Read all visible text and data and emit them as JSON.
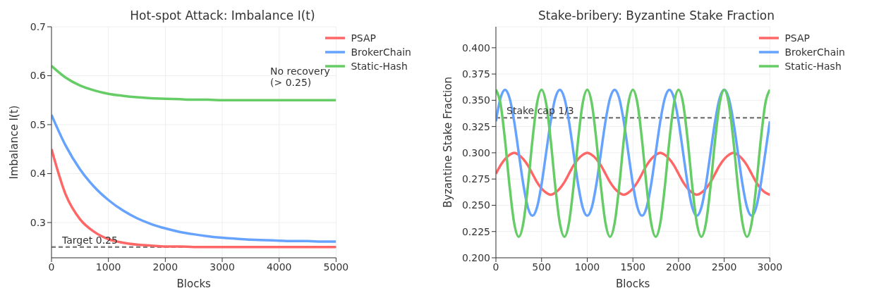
{
  "chart_data": [
    {
      "type": "line",
      "title": "Hot-spot Attack: Imbalance I(t)",
      "xlabel": "Blocks",
      "ylabel": "Imbalance I(t)",
      "x": [
        0,
        250,
        500,
        750,
        1000,
        1250,
        1500,
        1750,
        2000,
        2250,
        2500,
        2750,
        3000,
        3250,
        3500,
        3750,
        4000,
        4250,
        4500,
        4750,
        5000
      ],
      "series": [
        {
          "name": "PSAP",
          "color": "#ff6666",
          "values": [
            0.45,
            0.357,
            0.307,
            0.281,
            0.266,
            0.259,
            0.255,
            0.253,
            0.251,
            0.251,
            0.25,
            0.25,
            0.25,
            0.25,
            0.25,
            0.25,
            0.25,
            0.25,
            0.25,
            0.25,
            0.25
          ]
        },
        {
          "name": "BrokerChain",
          "color": "#66a3ff",
          "values": [
            0.52,
            0.457,
            0.409,
            0.373,
            0.346,
            0.325,
            0.309,
            0.297,
            0.288,
            0.281,
            0.276,
            0.272,
            0.269,
            0.267,
            0.265,
            0.264,
            0.263,
            0.262,
            0.262,
            0.261,
            0.261
          ]
        },
        {
          "name": "Static-Hash",
          "color": "#66cc66",
          "values": [
            0.62,
            0.596,
            0.58,
            0.57,
            0.563,
            0.559,
            0.556,
            0.554,
            0.553,
            0.552,
            0.551,
            0.551,
            0.55,
            0.55,
            0.55,
            0.55,
            0.55,
            0.55,
            0.55,
            0.55,
            0.55
          ]
        }
      ],
      "xlim": [
        0,
        5000
      ],
      "xticks": [
        0,
        1000,
        2000,
        3000,
        4000,
        5000
      ],
      "ylim": [
        0.228,
        0.7
      ],
      "yticks": [
        0.3,
        0.4,
        0.5,
        0.6,
        0.7
      ],
      "ref_lines": [
        {
          "axis": "y",
          "value": 0.25,
          "label": "Target 0.25",
          "color": "#808080",
          "line_style": "dashed"
        }
      ],
      "annotations": [
        "No recovery\n(> 0.25)"
      ],
      "grid": true,
      "legend": "top right",
      "marker": "none",
      "line_style": "solid"
    },
    {
      "type": "line",
      "title": "Stake-bribery: Byzantine Stake Fraction",
      "xlabel": "Blocks",
      "ylabel": "Byzantine Stake Fraction",
      "x": [
        0,
        50,
        100,
        150,
        200,
        250,
        300,
        350,
        400,
        450,
        500,
        550,
        600,
        650,
        700,
        750,
        800,
        850,
        900,
        950,
        1000,
        1050,
        1100,
        1150,
        1200,
        1250,
        1300,
        1350,
        1400,
        1450,
        1500,
        1550,
        1600,
        1650,
        1700,
        1750,
        1800,
        1850,
        1900,
        1950,
        2000,
        2050,
        2100,
        2150,
        2200,
        2250,
        2300,
        2350,
        2400,
        2450,
        2500,
        2550,
        2600,
        2650,
        2700,
        2750,
        2800,
        2850,
        2900,
        2950,
        3000
      ],
      "series": [
        {
          "name": "PSAP",
          "color": "#ff6666",
          "values": [
            0.28,
            0.288,
            0.294,
            0.298,
            0.3,
            0.298,
            0.294,
            0.288,
            0.28,
            0.272,
            0.266,
            0.262,
            0.26,
            0.262,
            0.266,
            0.272,
            0.28,
            0.288,
            0.294,
            0.298,
            0.3,
            0.298,
            0.294,
            0.288,
            0.28,
            0.272,
            0.266,
            0.262,
            0.26,
            0.262,
            0.266,
            0.272,
            0.28,
            0.288,
            0.294,
            0.298,
            0.3,
            0.298,
            0.294,
            0.288,
            0.28,
            0.272,
            0.266,
            0.262,
            0.26,
            0.262,
            0.266,
            0.272,
            0.28,
            0.288,
            0.294,
            0.298,
            0.3,
            0.298,
            0.294,
            0.288,
            0.28,
            0.272,
            0.266,
            0.262,
            0.26
          ]
        },
        {
          "name": "BrokerChain",
          "color": "#66a3ff",
          "values": [
            0.33,
            0.352,
            0.36,
            0.352,
            0.33,
            0.3,
            0.27,
            0.248,
            0.24,
            0.248,
            0.27,
            0.3,
            0.33,
            0.352,
            0.36,
            0.352,
            0.33,
            0.3,
            0.27,
            0.248,
            0.24,
            0.248,
            0.27,
            0.3,
            0.33,
            0.352,
            0.36,
            0.352,
            0.33,
            0.3,
            0.27,
            0.248,
            0.24,
            0.248,
            0.27,
            0.3,
            0.33,
            0.352,
            0.36,
            0.352,
            0.33,
            0.3,
            0.27,
            0.248,
            0.24,
            0.248,
            0.27,
            0.3,
            0.33,
            0.352,
            0.36,
            0.352,
            0.33,
            0.3,
            0.27,
            0.248,
            0.24,
            0.248,
            0.27,
            0.3,
            0.33
          ]
        },
        {
          "name": "Static-Hash",
          "color": "#66cc66",
          "values": [
            0.36,
            0.347,
            0.312,
            0.268,
            0.233,
            0.22,
            0.233,
            0.268,
            0.312,
            0.347,
            0.36,
            0.347,
            0.312,
            0.268,
            0.233,
            0.22,
            0.233,
            0.268,
            0.312,
            0.347,
            0.36,
            0.347,
            0.312,
            0.268,
            0.233,
            0.22,
            0.233,
            0.268,
            0.312,
            0.347,
            0.36,
            0.347,
            0.312,
            0.268,
            0.233,
            0.22,
            0.233,
            0.268,
            0.312,
            0.347,
            0.36,
            0.347,
            0.312,
            0.268,
            0.233,
            0.22,
            0.233,
            0.268,
            0.312,
            0.347,
            0.36,
            0.347,
            0.312,
            0.268,
            0.233,
            0.22,
            0.233,
            0.268,
            0.312,
            0.347,
            0.36
          ]
        }
      ],
      "xlim": [
        0,
        3000
      ],
      "xticks": [
        0,
        500,
        1000,
        1500,
        2000,
        2500,
        3000
      ],
      "ylim": [
        0.2,
        0.42
      ],
      "yticks": [
        {
          "value": 0.2,
          "label": "0.200"
        },
        {
          "value": 0.225,
          "label": "0.225"
        },
        {
          "value": 0.25,
          "label": "0.250"
        },
        {
          "value": 0.275,
          "label": "0.275"
        },
        {
          "value": 0.3,
          "label": "0.300"
        },
        {
          "value": 0.325,
          "label": "0.325"
        },
        {
          "value": 0.35,
          "label": "0.350"
        },
        {
          "value": 0.375,
          "label": "0.375"
        },
        {
          "value": 0.4,
          "label": "0.400"
        }
      ],
      "ref_lines": [
        {
          "axis": "y",
          "value": 0.3333,
          "label": "Stake cap 1/3",
          "color": "#808080",
          "line_style": "dashed"
        }
      ],
      "grid": true,
      "legend": "top right",
      "marker": "none",
      "line_style": "solid"
    }
  ]
}
